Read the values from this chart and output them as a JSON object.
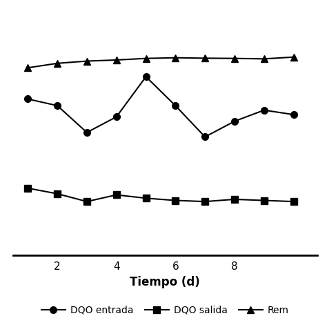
{
  "title": "",
  "xlabel": "Tiempo (d)",
  "xlabel_fontsize": 12,
  "xlabel_fontweight": "bold",
  "x": [
    1,
    2,
    3,
    4,
    5,
    6,
    7,
    8,
    9,
    10
  ],
  "remocion": [
    84,
    86,
    87,
    87.5,
    88.2,
    88.5,
    88.3,
    88.2,
    88.0,
    88.8
  ],
  "dqo_entrada": [
    70,
    67,
    55,
    62,
    80,
    67,
    53,
    60,
    65,
    63
  ],
  "dqo_salida": [
    30,
    27.5,
    24,
    27,
    25.5,
    24.5,
    24,
    25,
    24.5,
    24
  ],
  "line_color": "#000000",
  "marker_entrada": "o",
  "marker_salida": "s",
  "marker_remocion": "^",
  "markersize": 7,
  "linewidth": 1.5,
  "legend_entrada": "DQO entrada",
  "legend_salida": "DQO salida",
  "legend_remocion": "Rem",
  "figsize": [
    4.74,
    4.74
  ],
  "dpi": 100,
  "xlim": [
    0.5,
    10.8
  ],
  "xticks": [
    2,
    4,
    6,
    8
  ],
  "ylim": [
    0,
    110
  ],
  "background": "#ffffff"
}
